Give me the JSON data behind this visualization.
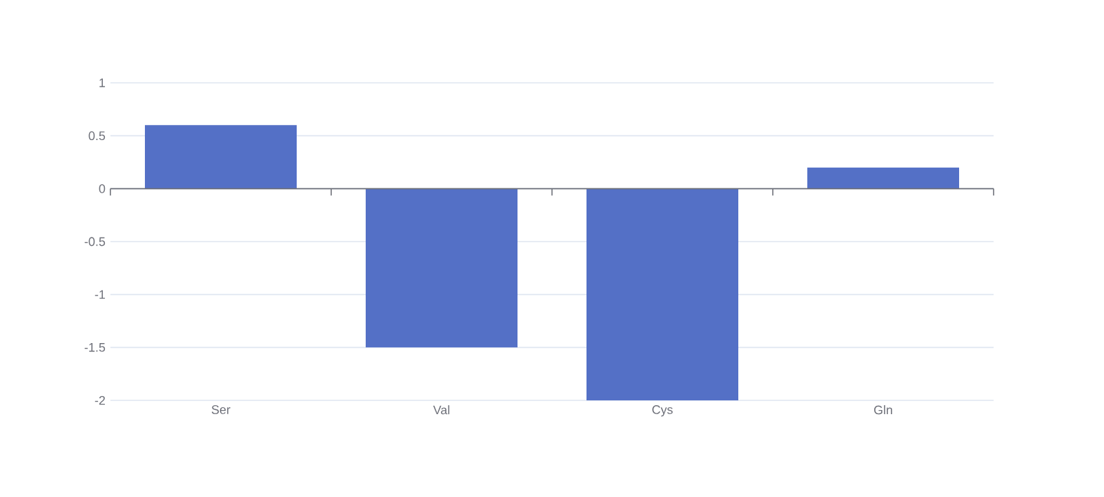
{
  "chart_data": {
    "type": "bar",
    "categories": [
      "Ser",
      "Val",
      "Cys",
      "Gln"
    ],
    "values": [
      0.6,
      -1.5,
      -2,
      0.2
    ],
    "color": "#5470c6",
    "ylim": [
      -2,
      1
    ],
    "yticks": [
      -2,
      -1.5,
      -1,
      -0.5,
      0,
      0.5,
      1
    ],
    "grid": "y"
  }
}
